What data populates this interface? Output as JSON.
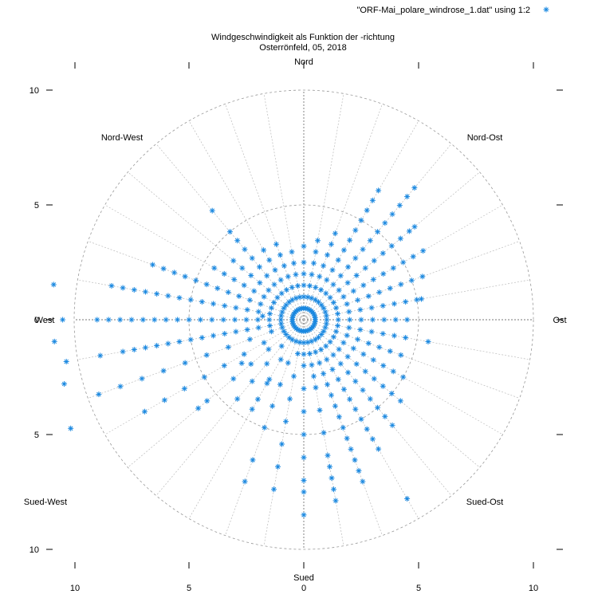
{
  "chart_data": {
    "type": "scatter",
    "coordinate_system": "polar",
    "title": "Windgeschwindigkeit als Funktion der -richtung",
    "subtitle": "Osterrönfeld, 05, 2018",
    "legend": {
      "label": "\"ORF-Mai_polare_windrose_1.dat\" using 1:2",
      "placement": "top-right"
    },
    "series_color": "#1a88e0",
    "r_max": 10,
    "circle_radii": [
      5,
      10
    ],
    "spoke_step_deg": 10,
    "directions": [
      {
        "label": "Nord",
        "deg": 90
      },
      {
        "label": "Nord-Ost",
        "deg": 45
      },
      {
        "label": "Ost",
        "deg": 0
      },
      {
        "label": "Sued-Ost",
        "deg": -45
      },
      {
        "label": "Sued",
        "deg": -90
      },
      {
        "label": "Sued-West",
        "deg": -135
      },
      {
        "label": "West",
        "deg": 180
      },
      {
        "label": "Nord-West",
        "deg": 135
      }
    ],
    "x_ticks": [
      "10",
      "5",
      "0",
      "5",
      "10"
    ],
    "y_ticks": [
      "10",
      "5",
      "0",
      "5",
      "10"
    ],
    "grid": true,
    "points": [
      [
        40,
        0.5
      ],
      [
        40,
        1
      ],
      [
        40,
        1.5
      ],
      [
        40,
        2
      ],
      [
        40,
        2.5
      ],
      [
        40,
        3
      ],
      [
        40,
        3.5
      ],
      [
        40,
        4
      ],
      [
        40,
        4.5
      ],
      [
        40,
        5
      ],
      [
        40,
        5.5
      ],
      [
        40,
        6
      ],
      [
        40,
        6.3
      ],
      [
        30,
        0.5
      ],
      [
        30,
        1
      ],
      [
        30,
        1.5
      ],
      [
        30,
        2
      ],
      [
        30,
        2.5
      ],
      [
        30,
        3
      ],
      [
        30,
        3.5
      ],
      [
        30,
        4
      ],
      [
        30,
        4.5
      ],
      [
        30,
        5
      ],
      [
        30,
        5.5
      ],
      [
        30,
        6
      ],
      [
        50,
        0.5
      ],
      [
        50,
        1
      ],
      [
        50,
        1.5
      ],
      [
        50,
        2
      ],
      [
        50,
        2.5
      ],
      [
        50,
        3
      ],
      [
        50,
        3.5
      ],
      [
        50,
        4
      ],
      [
        50,
        4.5
      ],
      [
        50,
        5
      ],
      [
        50,
        5.5
      ],
      [
        50,
        6
      ],
      [
        50,
        6.5
      ],
      [
        50,
        7
      ],
      [
        50,
        7.5
      ],
      [
        60,
        0.5
      ],
      [
        60,
        1
      ],
      [
        60,
        1.5
      ],
      [
        60,
        2
      ],
      [
        60,
        2.5
      ],
      [
        60,
        3
      ],
      [
        60,
        3.5
      ],
      [
        60,
        4
      ],
      [
        60,
        4.5
      ],
      [
        60,
        5
      ],
      [
        60,
        5.5
      ],
      [
        60,
        6
      ],
      [
        60,
        6.5
      ],
      [
        20,
        0.5
      ],
      [
        20,
        1
      ],
      [
        20,
        1.5
      ],
      [
        20,
        2
      ],
      [
        20,
        2.5
      ],
      [
        20,
        3
      ],
      [
        20,
        3.5
      ],
      [
        20,
        4
      ],
      [
        20,
        4.5
      ],
      [
        20,
        5
      ],
      [
        20,
        5.5
      ],
      [
        10,
        0.5
      ],
      [
        10,
        1
      ],
      [
        10,
        1.5
      ],
      [
        10,
        2
      ],
      [
        10,
        2.5
      ],
      [
        10,
        3
      ],
      [
        10,
        3.5
      ],
      [
        10,
        4
      ],
      [
        10,
        4.5
      ],
      [
        10,
        5
      ],
      [
        10,
        5.2
      ],
      [
        70,
        0.5
      ],
      [
        70,
        1
      ],
      [
        70,
        1.5
      ],
      [
        70,
        2
      ],
      [
        70,
        2.5
      ],
      [
        70,
        3
      ],
      [
        70,
        3.5
      ],
      [
        70,
        4
      ],
      [
        80,
        0.5
      ],
      [
        80,
        1
      ],
      [
        80,
        1.5
      ],
      [
        80,
        2
      ],
      [
        80,
        2.5
      ],
      [
        80,
        3
      ],
      [
        80,
        3.5
      ],
      [
        90,
        0.5
      ],
      [
        90,
        1
      ],
      [
        90,
        1.5
      ],
      [
        90,
        2
      ],
      [
        90,
        2.5
      ],
      [
        90,
        3.2
      ],
      [
        0,
        0.5
      ],
      [
        0,
        1
      ],
      [
        0,
        1.5
      ],
      [
        0,
        2
      ],
      [
        0,
        2.5
      ],
      [
        0,
        3
      ],
      [
        0,
        3.5
      ],
      [
        0,
        4
      ],
      [
        0,
        4.5
      ],
      [
        -10,
        0.5
      ],
      [
        -10,
        1
      ],
      [
        -10,
        1.5
      ],
      [
        -10,
        2
      ],
      [
        -10,
        2.5
      ],
      [
        -10,
        3
      ],
      [
        -10,
        3.5
      ],
      [
        -10,
        4
      ],
      [
        -10,
        4.5
      ],
      [
        -10,
        5.5
      ],
      [
        -20,
        0.5
      ],
      [
        -20,
        1
      ],
      [
        -20,
        1.5
      ],
      [
        -20,
        2
      ],
      [
        -20,
        2.5
      ],
      [
        -20,
        3
      ],
      [
        -20,
        3.5
      ],
      [
        -20,
        4
      ],
      [
        -20,
        4.5
      ],
      [
        -30,
        0.5
      ],
      [
        -30,
        1
      ],
      [
        -30,
        1.5
      ],
      [
        -30,
        2
      ],
      [
        -30,
        2.5
      ],
      [
        -30,
        3
      ],
      [
        -30,
        3.5
      ],
      [
        -30,
        4
      ],
      [
        -30,
        4.5
      ],
      [
        -30,
        5
      ],
      [
        -40,
        0.5
      ],
      [
        -40,
        1
      ],
      [
        -40,
        1.5
      ],
      [
        -40,
        2
      ],
      [
        -40,
        2.5
      ],
      [
        -40,
        3
      ],
      [
        -40,
        3.5
      ],
      [
        -40,
        4
      ],
      [
        -40,
        4.5
      ],
      [
        -40,
        5
      ],
      [
        -40,
        5.5
      ],
      [
        -50,
        0.5
      ],
      [
        -50,
        1
      ],
      [
        -50,
        1.5
      ],
      [
        -50,
        2
      ],
      [
        -50,
        2.5
      ],
      [
        -50,
        3
      ],
      [
        -50,
        3.5
      ],
      [
        -50,
        4
      ],
      [
        -50,
        4.5
      ],
      [
        -50,
        5
      ],
      [
        -50,
        5.5
      ],
      [
        -50,
        6
      ],
      [
        -60,
        0.5
      ],
      [
        -60,
        1
      ],
      [
        -60,
        1.5
      ],
      [
        -60,
        2
      ],
      [
        -60,
        2.5
      ],
      [
        -60,
        3
      ],
      [
        -60,
        3.5
      ],
      [
        -60,
        4
      ],
      [
        -60,
        4.5
      ],
      [
        -60,
        5
      ],
      [
        -60,
        5.5
      ],
      [
        -60,
        6
      ],
      [
        -60,
        6.5
      ],
      [
        -70,
        0.5
      ],
      [
        -70,
        1
      ],
      [
        -70,
        1.5
      ],
      [
        -70,
        2
      ],
      [
        -70,
        2.5
      ],
      [
        -70,
        3
      ],
      [
        -70,
        3.5
      ],
      [
        -70,
        4
      ],
      [
        -70,
        4.5
      ],
      [
        -70,
        5
      ],
      [
        -70,
        5.5
      ],
      [
        -70,
        6
      ],
      [
        -70,
        6.5
      ],
      [
        -70,
        7
      ],
      [
        -70,
        7.5
      ],
      [
        -80,
        0.5
      ],
      [
        -80,
        1
      ],
      [
        -80,
        1.5
      ],
      [
        -80,
        2
      ],
      [
        -80,
        2.5
      ],
      [
        -80,
        3
      ],
      [
        -80,
        4
      ],
      [
        -80,
        5
      ],
      [
        -80,
        6
      ],
      [
        -80,
        6.5
      ],
      [
        -80,
        7
      ],
      [
        -80,
        7.5
      ],
      [
        -80,
        8
      ],
      [
        -90,
        0.5
      ],
      [
        -90,
        1
      ],
      [
        -90,
        1.5
      ],
      [
        -90,
        2
      ],
      [
        -90,
        3
      ],
      [
        -90,
        4
      ],
      [
        -90,
        5
      ],
      [
        -90,
        6
      ],
      [
        -90,
        7
      ],
      [
        -90,
        7.5
      ],
      [
        -90,
        8.5
      ],
      [
        -100,
        0.5
      ],
      [
        -100,
        1
      ],
      [
        -100,
        1.5
      ],
      [
        -100,
        2.5
      ],
      [
        -100,
        3.5
      ],
      [
        -100,
        4.5
      ],
      [
        -100,
        5.5
      ],
      [
        -100,
        6.5
      ],
      [
        -100,
        7.5
      ],
      [
        -110,
        0.5
      ],
      [
        -110,
        1
      ],
      [
        -110,
        2
      ],
      [
        -110,
        3
      ],
      [
        -110,
        4
      ],
      [
        -110,
        5
      ],
      [
        -110,
        6.5
      ],
      [
        -110,
        7.5
      ],
      [
        -120,
        0.5
      ],
      [
        -120,
        1
      ],
      [
        -120,
        2
      ],
      [
        -120,
        3
      ],
      [
        -120,
        4
      ],
      [
        -120,
        4.5
      ],
      [
        -130,
        0.5
      ],
      [
        -130,
        1
      ],
      [
        -130,
        1.5
      ],
      [
        -130,
        2.5
      ],
      [
        -130,
        3.5
      ],
      [
        -130,
        4.5
      ],
      [
        -140,
        0.5
      ],
      [
        -140,
        1
      ],
      [
        -140,
        2
      ],
      [
        -140,
        3
      ],
      [
        -140,
        4
      ],
      [
        -140,
        5.5
      ],
      [
        -140,
        6
      ],
      [
        -150,
        0.5
      ],
      [
        -150,
        1
      ],
      [
        -150,
        2
      ],
      [
        -150,
        3
      ],
      [
        -150,
        4
      ],
      [
        -150,
        5
      ],
      [
        -150,
        6
      ],
      [
        -150,
        7
      ],
      [
        -150,
        8
      ],
      [
        -160,
        0.5
      ],
      [
        -160,
        1
      ],
      [
        -160,
        1.5
      ],
      [
        -160,
        2.5
      ],
      [
        -160,
        3.5
      ],
      [
        -160,
        4.5
      ],
      [
        -160,
        5.5
      ],
      [
        -160,
        6.5
      ],
      [
        -160,
        7.5
      ],
      [
        -160,
        8.5
      ],
      [
        -160,
        9.5
      ],
      [
        -170,
        0.5
      ],
      [
        -170,
        1
      ],
      [
        -170,
        1.5
      ],
      [
        -170,
        2
      ],
      [
        -170,
        2.5
      ],
      [
        -170,
        3
      ],
      [
        -170,
        3.5
      ],
      [
        -170,
        4
      ],
      [
        -170,
        4.5
      ],
      [
        -170,
        5
      ],
      [
        -170,
        5.5
      ],
      [
        -170,
        6
      ],
      [
        -170,
        6.5
      ],
      [
        -170,
        7
      ],
      [
        -170,
        7.5
      ],
      [
        -170,
        8
      ],
      [
        -170,
        9
      ],
      [
        -170,
        10.5
      ],
      [
        180,
        0.5
      ],
      [
        180,
        1
      ],
      [
        180,
        1.5
      ],
      [
        180,
        2
      ],
      [
        180,
        2.5
      ],
      [
        180,
        3
      ],
      [
        180,
        3.5
      ],
      [
        180,
        4
      ],
      [
        180,
        4.5
      ],
      [
        180,
        5
      ],
      [
        180,
        5.5
      ],
      [
        180,
        6
      ],
      [
        180,
        6.5
      ],
      [
        180,
        7
      ],
      [
        180,
        7.5
      ],
      [
        180,
        8
      ],
      [
        180,
        8.5
      ],
      [
        180,
        9
      ],
      [
        180,
        10.5
      ],
      [
        170,
        0.5
      ],
      [
        170,
        1
      ],
      [
        170,
        1.5
      ],
      [
        170,
        2
      ],
      [
        170,
        2.5
      ],
      [
        170,
        3
      ],
      [
        170,
        3.5
      ],
      [
        170,
        4
      ],
      [
        170,
        4.5
      ],
      [
        170,
        5
      ],
      [
        170,
        5.5
      ],
      [
        170,
        6
      ],
      [
        170,
        6.5
      ],
      [
        170,
        7
      ],
      [
        170,
        7.5
      ],
      [
        170,
        8
      ],
      [
        170,
        8.5
      ],
      [
        160,
        0.5
      ],
      [
        160,
        1
      ],
      [
        160,
        1.5
      ],
      [
        160,
        2
      ],
      [
        160,
        2.5
      ],
      [
        160,
        3
      ],
      [
        160,
        3.5
      ],
      [
        160,
        4
      ],
      [
        160,
        4.5
      ],
      [
        160,
        5
      ],
      [
        160,
        5.5
      ],
      [
        160,
        6
      ],
      [
        160,
        6.5
      ],
      [
        160,
        7
      ],
      [
        150,
        0.5
      ],
      [
        150,
        1
      ],
      [
        150,
        1.5
      ],
      [
        150,
        2
      ],
      [
        150,
        2.5
      ],
      [
        150,
        3
      ],
      [
        150,
        3.5
      ],
      [
        150,
        4
      ],
      [
        150,
        4.5
      ],
      [
        140,
        0.5
      ],
      [
        140,
        1
      ],
      [
        140,
        1.5
      ],
      [
        140,
        2
      ],
      [
        140,
        2.5
      ],
      [
        140,
        3
      ],
      [
        140,
        3.5
      ],
      [
        140,
        4
      ],
      [
        130,
        0.5
      ],
      [
        130,
        1
      ],
      [
        130,
        1.5
      ],
      [
        130,
        2
      ],
      [
        130,
        2.5
      ],
      [
        130,
        3
      ],
      [
        130,
        3.5
      ],
      [
        130,
        4
      ],
      [
        130,
        4.5
      ],
      [
        130,
        5
      ],
      [
        130,
        6.2
      ],
      [
        120,
        0.5
      ],
      [
        120,
        1
      ],
      [
        120,
        1.5
      ],
      [
        120,
        2
      ],
      [
        120,
        2.5
      ],
      [
        120,
        3
      ],
      [
        120,
        3.5
      ],
      [
        110,
        0.5
      ],
      [
        110,
        1
      ],
      [
        110,
        1.5
      ],
      [
        110,
        2
      ],
      [
        110,
        2.5
      ],
      [
        110,
        3
      ],
      [
        110,
        3.5
      ],
      [
        100,
        0.5
      ],
      [
        100,
        1
      ],
      [
        100,
        1.5
      ],
      [
        100,
        2
      ],
      [
        100,
        2.5
      ],
      [
        100,
        3
      ],
      [
        -175,
        10.9
      ],
      [
        -165,
        10.8
      ],
      [
        172,
        11
      ],
      [
        -155,
        11.2
      ],
      [
        -60,
        9
      ],
      [
        -120,
        3.2
      ],
      [
        -145,
        3.3
      ],
      [
        175,
        1.8
      ]
    ]
  }
}
